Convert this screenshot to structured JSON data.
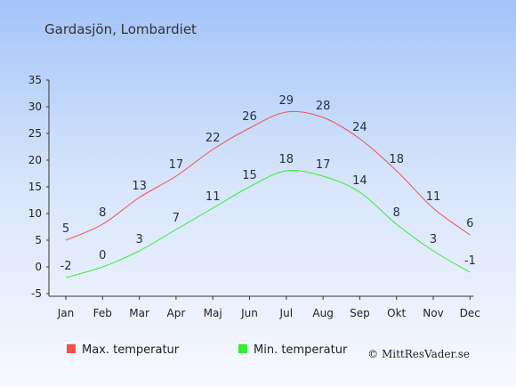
{
  "chart_data": {
    "type": "line",
    "title": "Gardasjön, Lombardiet",
    "categories": [
      "Jan",
      "Feb",
      "Mar",
      "Apr",
      "Maj",
      "Jun",
      "Jul",
      "Aug",
      "Sep",
      "Okt",
      "Nov",
      "Dec"
    ],
    "series": [
      {
        "name": "Max. temperatur",
        "color": "#f05050",
        "values": [
          5,
          8,
          13,
          17,
          22,
          26,
          29,
          28,
          24,
          18,
          11,
          6
        ]
      },
      {
        "name": "Min. temperatur",
        "color": "#33ee33",
        "values": [
          -2,
          0,
          3,
          7,
          11,
          15,
          18,
          17,
          14,
          8,
          3,
          -1
        ]
      }
    ],
    "ylim": [
      -5,
      35
    ],
    "yticks": [
      -5,
      0,
      5,
      10,
      15,
      20,
      25,
      30,
      35
    ],
    "grid": false,
    "legend_position": "bottom-left"
  },
  "credit": "© MittResVader.se"
}
